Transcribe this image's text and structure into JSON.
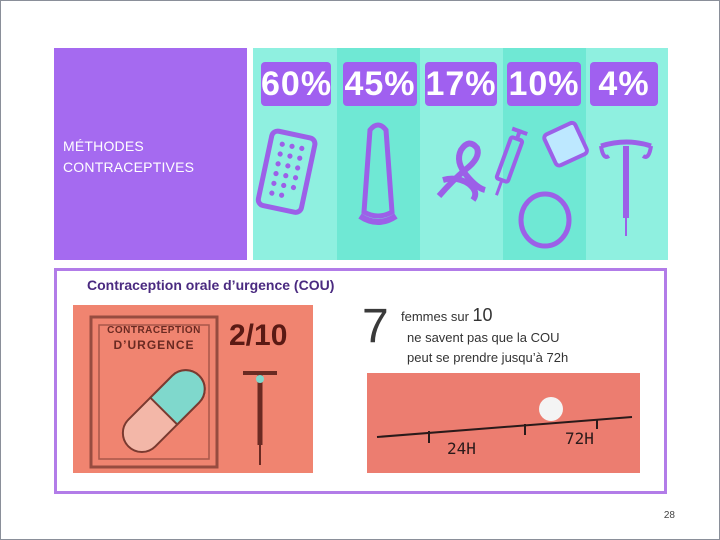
{
  "banner": {
    "title_line1": "MÉTHODES",
    "title_line2": "CONTRACEPTIVES",
    "percentages": [
      "60%",
      "45%",
      "17%",
      "10%",
      "4%"
    ],
    "icons": [
      "pill-pack-icon",
      "condom-icon",
      "knot-icon",
      "syringe-icon",
      "patch-icon",
      "ring-icon",
      "iud-icon"
    ]
  },
  "section": {
    "title": "Contraception orale d’urgence (COU)",
    "card_text_line1": "CONTRACEPTION",
    "card_text_line2": "D’URGENCE",
    "card_ratio": "2/10",
    "stat_number": "7",
    "stat_prefix": "femmes sur",
    "stat_ten": "10",
    "stat_line2": "ne savent pas que la COU",
    "stat_line3": "peut se prendre jusqu’à 72h",
    "photo_label_24": "24H",
    "photo_label_72": "72H"
  },
  "page_number": "28",
  "colors": {
    "purple": "#a56af0",
    "mint": "#8ff0e0",
    "coral": "#f08470",
    "frame": "#b27ce8"
  }
}
